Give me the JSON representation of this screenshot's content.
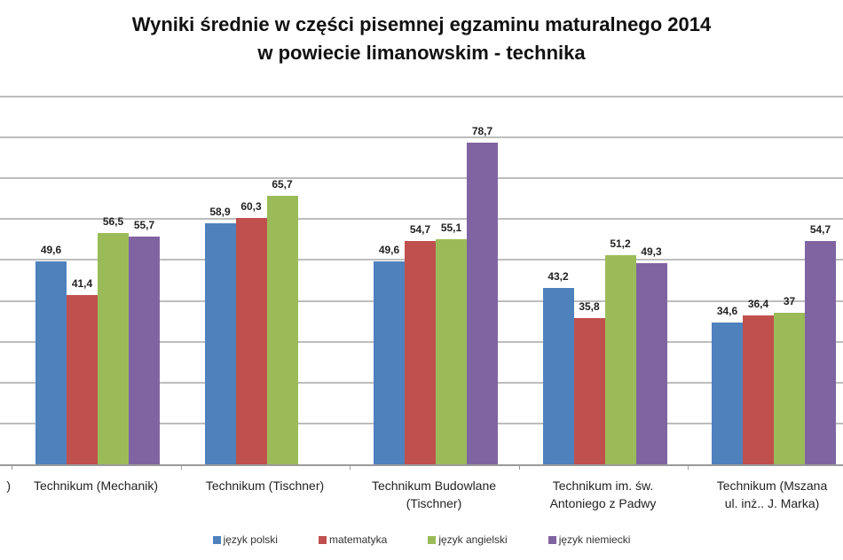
{
  "title": {
    "line1": "Wyniki średnie w części pisemnej egzaminu maturalnego 2014",
    "line2": "w powiecie limanowskim - technika"
  },
  "partial_left_label": ")",
  "chart_data": {
    "type": "bar",
    "title": "Wyniki średnie w części pisemnej egzaminu maturalnego 2014 w powiecie limanowskim - technika",
    "xlabel": "",
    "ylabel": "",
    "ylim": [
      0,
      90
    ],
    "grid": true,
    "legend_position": "bottom",
    "categories": [
      "Technikum (Mechanik)",
      "Technikum (Tischner)",
      "Technikum Budowlane (Tischner)",
      "Technikum im. św. Antoniego z Padwy",
      "Technikum (Mszana ul. inż.. J. Marka)"
    ],
    "category_lines": [
      [
        "Technikum (Mechanik)"
      ],
      [
        "Technikum (Tischner)"
      ],
      [
        "Technikum Budowlane",
        "(Tischner)"
      ],
      [
        "Technikum im. św.",
        "Antoniego z Padwy"
      ],
      [
        "Technikum (Mszana",
        "ul. inż.. J. Marka)"
      ]
    ],
    "series": [
      {
        "name": "język polski",
        "color": "#4F81BD",
        "values": [
          49.6,
          58.9,
          49.6,
          43.2,
          34.6
        ],
        "labels": [
          "49,6",
          "58,9",
          "49,6",
          "43,2",
          "34,6"
        ]
      },
      {
        "name": "matematyka",
        "color": "#C0504D",
        "values": [
          41.4,
          60.3,
          54.7,
          35.8,
          36.4
        ],
        "labels": [
          "41,4",
          "60,3",
          "54,7",
          "35,8",
          "36,4"
        ]
      },
      {
        "name": "język angielski",
        "color": "#9BBB59",
        "values": [
          56.5,
          65.7,
          55.1,
          51.2,
          37
        ],
        "labels": [
          "56,5",
          "65,7",
          "55,1",
          "51,2",
          "37"
        ]
      },
      {
        "name": "język niemiecki",
        "color": "#8064A2",
        "values": [
          55.7,
          null,
          78.7,
          49.3,
          54.7
        ],
        "labels": [
          "55,7",
          "",
          "78,7",
          "49,3",
          "54,7"
        ]
      }
    ]
  }
}
